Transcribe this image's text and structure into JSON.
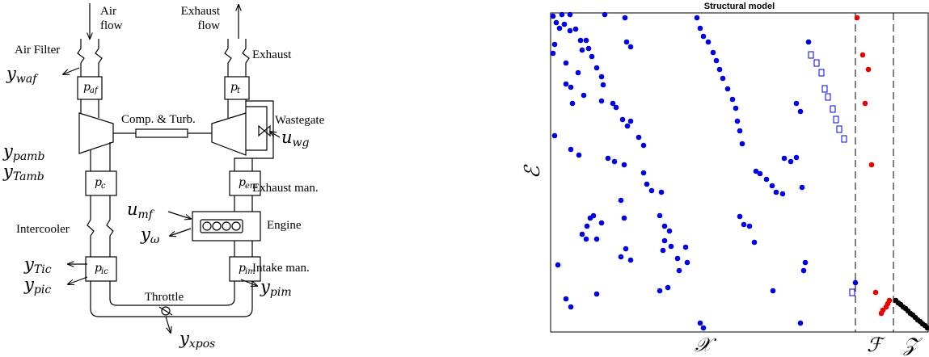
{
  "diagram": {
    "labels": [
      "Air",
      "flow",
      "Exhaust",
      "flow",
      "Air Filter",
      "Exhaust",
      "Comp. & Turb.",
      "Wastegate",
      "Exhaust man.",
      "Engine",
      "Intercooler",
      "Intake man.",
      "Throttle"
    ],
    "symbols": [
      {
        "symbol": "y",
        "subscript": "waf"
      },
      {
        "symbol": "y",
        "subscript": "pamb"
      },
      {
        "symbol": "y",
        "subscript": "Tamb"
      },
      {
        "symbol": "u",
        "subscript": "wg"
      },
      {
        "symbol": "u",
        "subscript": "mf"
      },
      {
        "symbol": "y",
        "subscript": "ω"
      },
      {
        "symbol": "y",
        "subscript": "Tic"
      },
      {
        "symbol": "y",
        "subscript": "pic"
      },
      {
        "symbol": "y",
        "subscript": "pim"
      },
      {
        "symbol": "y",
        "subscript": "xpos"
      }
    ],
    "boxes": [
      {
        "symbol": "p",
        "subscript": "af"
      },
      {
        "symbol": "p",
        "subscript": "t"
      },
      {
        "symbol": "p",
        "subscript": "c"
      },
      {
        "symbol": "p",
        "subscript": "em"
      },
      {
        "symbol": "p",
        "subscript": "ic"
      },
      {
        "symbol": "p",
        "subscript": "im"
      }
    ]
  },
  "chart_data": {
    "type": "scatter",
    "title": "Structural model",
    "ylabel": "ℰ",
    "group_labels": [
      "𝒳",
      "ℱ",
      "𝒵"
    ],
    "vlines": [
      377,
      424
    ],
    "xlim": [
      0,
      467
    ],
    "ylim": [
      395,
      0
    ],
    "series": [
      {
        "color": "#0000ee",
        "marker": "dot",
        "x": [
          3,
          14,
          24,
          7,
          11,
          17,
          24,
          31,
          37,
          44,
          5,
          3,
          39,
          47,
          51,
          57,
          19,
          34,
          67,
          92,
          94,
          99,
          19,
          25,
          27,
          63,
          65,
          77,
          81,
          89,
          99,
          95,
          109,
          115,
          5,
          25,
          35,
          71,
          79,
          91,
          115,
          119,
          125,
          137,
          91,
          87,
          63,
          53,
          49,
          45,
          44,
          57,
          39,
          135,
          141,
          147,
          141,
          139,
          149,
          157,
          167,
          169,
          159,
          93,
          99,
          87,
          9,
          19,
          25,
          57,
          135,
          145,
          189,
          185,
          275,
          309,
          315,
          313,
          234,
          239,
          246,
          252,
          254,
          259,
          267,
          274,
          279,
          287,
          289,
          297,
          304,
          311,
          181,
          185,
          189,
          195,
          201,
          205,
          209,
          213,
          219,
          225,
          229,
          231,
          234,
          237,
          304,
          309,
          63,
          41,
          377,
          319
        ],
        "y": [
          4,
          2,
          2,
          12,
          19,
          14,
          22,
          20,
          34,
          34,
          39,
          50,
          46,
          44,
          54,
          68,
          62,
          74,
          2,
          6,
          36,
          42,
          88,
          92,
          112,
          79,
          89,
          112,
          117,
          132,
          134,
          140,
          154,
          164,
          152,
          169,
          176,
          180,
          184,
          188,
          198,
          212,
          220,
          222,
          254,
          232,
          260,
          251,
          254,
          264,
          280,
          280,
          274,
          251,
          264,
          270,
          282,
          294,
          289,
          304,
          290,
          309,
          319,
          292,
          306,
          302,
          312,
          354,
          364,
          348,
          344,
          340,
          390,
          384,
          344,
          384,
          309,
          319,
          252,
          262,
          264,
          284,
          196,
          199,
          206,
          214,
          222,
          224,
          180,
          184,
          179,
          216,
          6,
          19,
          29,
          36,
          49,
          59,
          70,
          81,
          94,
          107,
          118,
          134,
          146,
          162,
          112,
          122,
          109,
          102,
          334,
          36
        ]
      },
      {
        "color": "#0000ee",
        "marker": "square",
        "x": [
          322,
          329,
          335,
          339,
          343,
          349,
          353,
          357,
          363,
          373
        ],
        "y": [
          52,
          62,
          74,
          94,
          104,
          119,
          132,
          144,
          156,
          346
        ]
      },
      {
        "color": "#ee0000",
        "marker": "dot",
        "x": [
          379,
          386,
          393,
          389,
          397,
          402,
          409,
          411,
          417,
          419,
          415
        ],
        "y": [
          6,
          52,
          70,
          112,
          188,
          346,
          372,
          368,
          360,
          356,
          364
        ]
      },
      {
        "color": "#000000",
        "marker": "dot",
        "x": [
          427,
          430,
          433,
          436,
          439,
          442,
          445,
          448,
          451,
          454,
          457,
          460,
          463,
          466
        ],
        "y": [
          356,
          359,
          361,
          364,
          366,
          369,
          372,
          374,
          377,
          380,
          382,
          385,
          387,
          390
        ]
      }
    ]
  }
}
